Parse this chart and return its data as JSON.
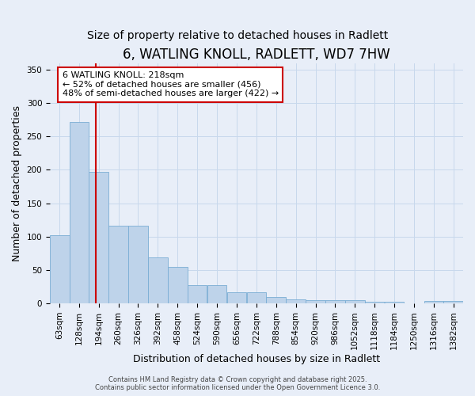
{
  "title": "6, WATLING KNOLL, RADLETT, WD7 7HW",
  "subtitle": "Size of property relative to detached houses in Radlett",
  "xlabel": "Distribution of detached houses by size in Radlett",
  "ylabel": "Number of detached properties",
  "bin_edges": [
    63,
    128,
    194,
    260,
    326,
    392,
    458,
    524,
    590,
    656,
    722,
    788,
    854,
    920,
    986,
    1052,
    1118,
    1184,
    1250,
    1316,
    1382
  ],
  "bar_heights": [
    102,
    272,
    197,
    116,
    116,
    69,
    55,
    27,
    27,
    17,
    17,
    9,
    6,
    5,
    5,
    5,
    2,
    2,
    0,
    4,
    3
  ],
  "bar_color": "#bed3ea",
  "bar_edge_color": "#7aadd4",
  "bar_alpha": 1.0,
  "red_line_x": 218,
  "red_line_color": "#cc0000",
  "ylim": [
    0,
    360
  ],
  "yticks": [
    0,
    50,
    100,
    150,
    200,
    250,
    300,
    350
  ],
  "annotation_line1": "6 WATLING KNOLL: 218sqm",
  "annotation_line2": "← 52% of detached houses are smaller (456)",
  "annotation_line3": "48% of semi-detached houses are larger (422) →",
  "annotation_box_color": "#ffffff",
  "annotation_box_edge_color": "#cc0000",
  "footer_text": "Contains HM Land Registry data © Crown copyright and database right 2025.\nContains public sector information licensed under the Open Government Licence 3.0.",
  "background_color": "#e8eef8",
  "grid_color": "#c8d8ec",
  "title_fontsize": 12,
  "subtitle_fontsize": 10,
  "axis_label_fontsize": 9,
  "tick_label_fontsize": 7.5,
  "annotation_fontsize": 8
}
